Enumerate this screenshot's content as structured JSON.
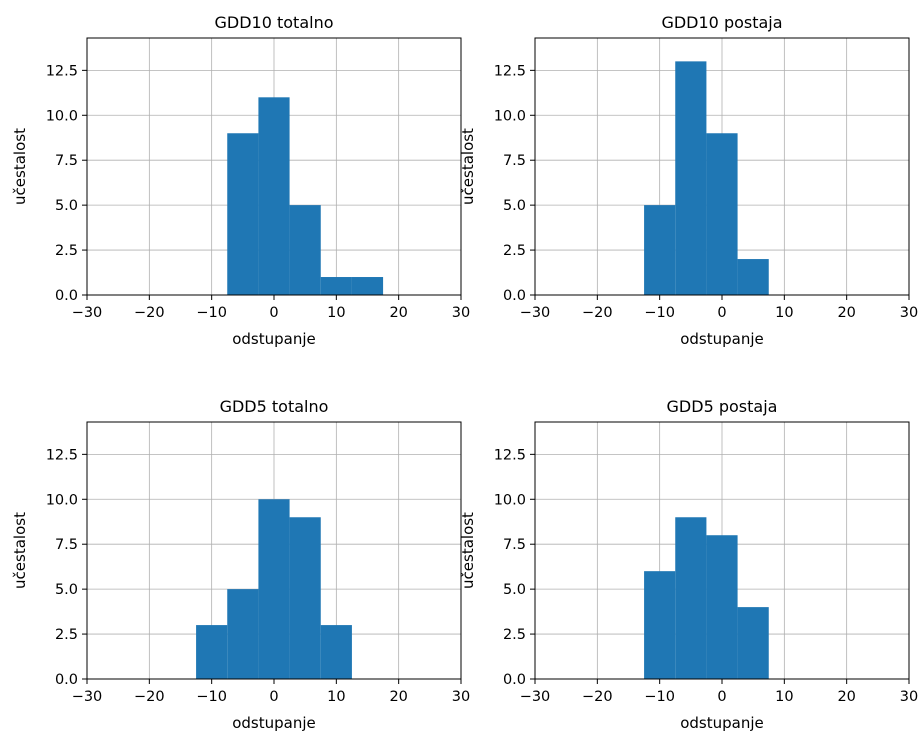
{
  "chart_data": [
    {
      "type": "bar",
      "title": "GDD10 totalno",
      "xlabel": "odstupanje",
      "ylabel": "učestalost",
      "xlim": [
        -30,
        30
      ],
      "ylim": [
        0,
        14.3
      ],
      "xticks": [
        -30,
        -20,
        -10,
        0,
        10,
        20,
        30
      ],
      "yticks": [
        0.0,
        2.5,
        5.0,
        7.5,
        10.0,
        12.5
      ],
      "xtick_labels": [
        "−30",
        "−20",
        "−10",
        "0",
        "10",
        "20",
        "30"
      ],
      "ytick_labels": [
        "0.0",
        "2.5",
        "5.0",
        "7.5",
        "10.0",
        "12.5"
      ],
      "grid": true,
      "color": "#1f77b4",
      "bins": [
        [
          -7.5,
          -2.5,
          9
        ],
        [
          -2.5,
          2.5,
          11
        ],
        [
          2.5,
          7.5,
          5
        ],
        [
          7.5,
          12.5,
          1
        ],
        [
          12.5,
          17.5,
          1
        ]
      ]
    },
    {
      "type": "bar",
      "title": "GDD10 postaja",
      "xlabel": "odstupanje",
      "ylabel": "učestalost",
      "xlim": [
        -30,
        30
      ],
      "ylim": [
        0,
        14.3
      ],
      "xticks": [
        -30,
        -20,
        -10,
        0,
        10,
        20,
        30
      ],
      "yticks": [
        0.0,
        2.5,
        5.0,
        7.5,
        10.0,
        12.5
      ],
      "xtick_labels": [
        "−30",
        "−20",
        "−10",
        "0",
        "10",
        "20",
        "30"
      ],
      "ytick_labels": [
        "0.0",
        "2.5",
        "5.0",
        "7.5",
        "10.0",
        "12.5"
      ],
      "grid": true,
      "color": "#1f77b4",
      "bins": [
        [
          -12.5,
          -7.5,
          5
        ],
        [
          -7.5,
          -2.5,
          13
        ],
        [
          -2.5,
          2.5,
          9
        ],
        [
          2.5,
          7.5,
          2
        ]
      ]
    },
    {
      "type": "bar",
      "title": "GDD5 totalno",
      "xlabel": "odstupanje",
      "ylabel": "učestalost",
      "xlim": [
        -30,
        30
      ],
      "ylim": [
        0,
        14.3
      ],
      "xticks": [
        -30,
        -20,
        -10,
        0,
        10,
        20,
        30
      ],
      "yticks": [
        0.0,
        2.5,
        5.0,
        7.5,
        10.0,
        12.5
      ],
      "xtick_labels": [
        "−30",
        "−20",
        "−10",
        "0",
        "10",
        "20",
        "30"
      ],
      "ytick_labels": [
        "0.0",
        "2.5",
        "5.0",
        "7.5",
        "10.0",
        "12.5"
      ],
      "grid": true,
      "color": "#1f77b4",
      "bins": [
        [
          -12.5,
          -7.5,
          3
        ],
        [
          -7.5,
          -2.5,
          5
        ],
        [
          -2.5,
          2.5,
          10
        ],
        [
          2.5,
          7.5,
          9
        ],
        [
          7.5,
          12.5,
          3
        ]
      ]
    },
    {
      "type": "bar",
      "title": "GDD5 postaja",
      "xlabel": "odstupanje",
      "ylabel": "učestalost",
      "xlim": [
        -30,
        30
      ],
      "ylim": [
        0,
        14.3
      ],
      "xticks": [
        -30,
        -20,
        -10,
        0,
        10,
        20,
        30
      ],
      "yticks": [
        0.0,
        2.5,
        5.0,
        7.5,
        10.0,
        12.5
      ],
      "xtick_labels": [
        "−30",
        "−20",
        "−10",
        "0",
        "10",
        "20",
        "30"
      ],
      "ytick_labels": [
        "0.0",
        "2.5",
        "5.0",
        "7.5",
        "10.0",
        "12.5"
      ],
      "grid": true,
      "color": "#1f77b4",
      "bins": [
        [
          -12.5,
          -7.5,
          6
        ],
        [
          -7.5,
          -2.5,
          9
        ],
        [
          -2.5,
          2.5,
          8
        ],
        [
          2.5,
          7.5,
          4
        ]
      ]
    }
  ]
}
